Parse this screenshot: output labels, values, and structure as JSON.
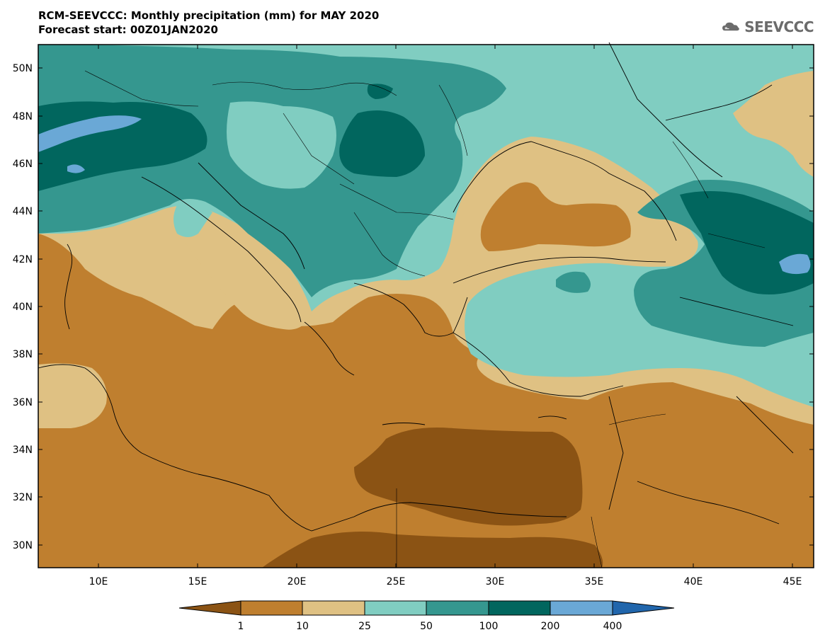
{
  "header": {
    "title_line1": "RCM-SEEVCCC: Monthly precipitation (mm) for MAY 2020",
    "title_line2": "Forecast start: 00Z01JAN2020",
    "logo_text": "SEEVCCC"
  },
  "map": {
    "lat_labels": [
      "50N",
      "48N",
      "46N",
      "44N",
      "42N",
      "40N",
      "38N",
      "36N",
      "34N",
      "32N",
      "30N"
    ],
    "lon_labels": [
      "10E",
      "15E",
      "20E",
      "25E",
      "30E",
      "35E",
      "40E",
      "45E"
    ]
  },
  "legend": {
    "thresholds": [
      "1",
      "10",
      "25",
      "50",
      "100",
      "200",
      "400"
    ],
    "colors": [
      "#8b5314",
      "#bf7f2f",
      "#dfc183",
      "#80cdc1",
      "#35978f",
      "#01665e",
      "#6aa8d6",
      "#2166ac"
    ]
  }
}
